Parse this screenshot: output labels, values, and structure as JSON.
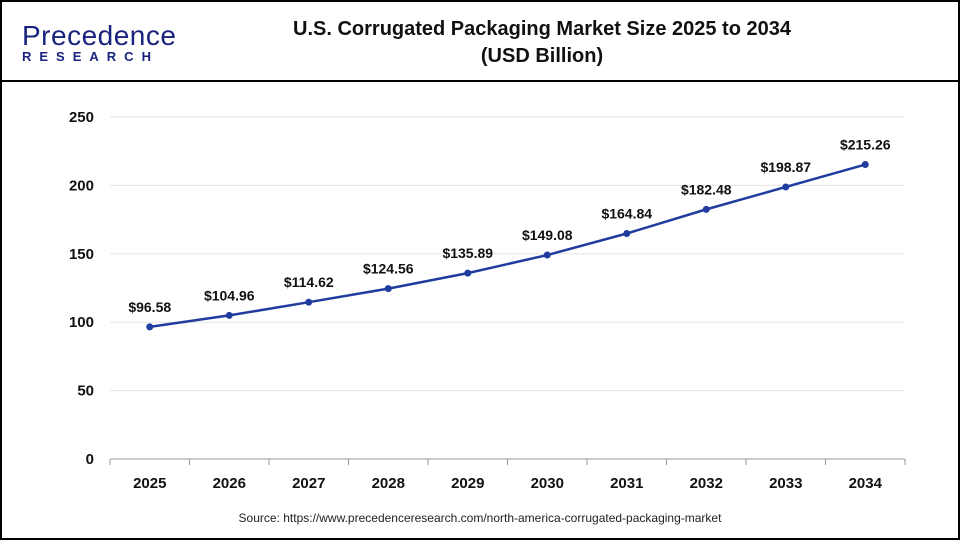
{
  "logo": {
    "line1": "Precedence",
    "line2": "RESEARCH"
  },
  "title_line1": "U.S. Corrugated Packaging Market Size 2025 to 2034",
  "title_line2": "(USD Billion)",
  "source": "Source: https://www.precedenceresearch.com/north-america-corrugated-packaging-market",
  "chart_data": {
    "type": "line",
    "title": "U.S. Corrugated Packaging Market Size 2025 to 2034 (USD Billion)",
    "xlabel": "",
    "ylabel": "",
    "categories": [
      "2025",
      "2026",
      "2027",
      "2028",
      "2029",
      "2030",
      "2031",
      "2032",
      "2033",
      "2034"
    ],
    "values": [
      96.58,
      104.96,
      114.62,
      124.56,
      135.89,
      149.08,
      164.84,
      182.48,
      198.87,
      215.26
    ],
    "data_labels": [
      "$96.58",
      "$104.96",
      "$114.62",
      "$124.56",
      "$135.89",
      "$149.08",
      "$164.84",
      "$182.48",
      "$198.87",
      "$215.26"
    ],
    "ylim": [
      0,
      250
    ],
    "yticks": [
      "0",
      "50",
      "100",
      "150",
      "200",
      "250"
    ],
    "grid": true,
    "legend": "none",
    "color": "#1f3c9e"
  }
}
